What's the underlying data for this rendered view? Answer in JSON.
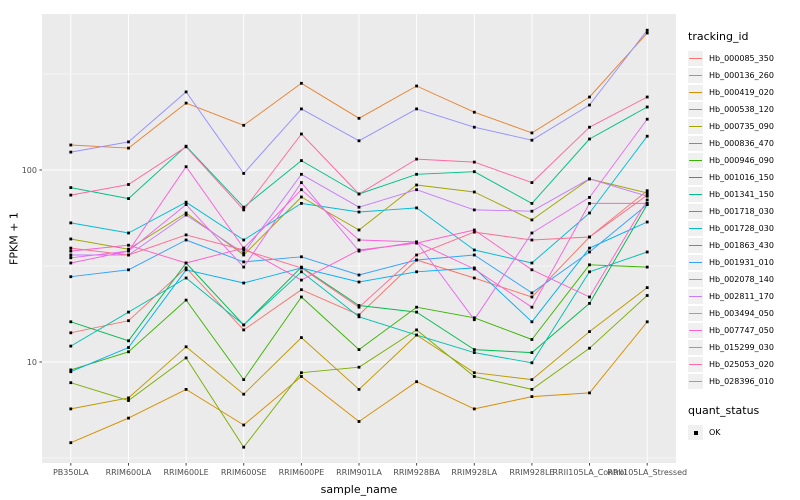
{
  "figure": {
    "y_axis": {
      "title": "FPKM + 1",
      "ticks": [
        {
          "label": "100",
          "value": 100
        },
        {
          "label": "10",
          "value": 10
        }
      ]
    },
    "x_axis": {
      "title": "sample_name"
    },
    "legend_tracking": {
      "title": "tracking_id"
    },
    "legend_quant": {
      "title": "quant_status",
      "items": [
        {
          "label": "OK"
        }
      ]
    },
    "panel_background": "#EBEBEB",
    "grid_color": "#FFFFFF",
    "tick_label_color": "#4D4D4D",
    "marker_color": "#000000"
  },
  "chart_data": {
    "type": "line",
    "title": "",
    "xlabel": "sample_name",
    "ylabel": "FPKM + 1",
    "x_scale": "categorical",
    "y_scale": "log10",
    "ylim": [
      2.7,
      650
    ],
    "y_major_ticks": [
      10,
      100
    ],
    "y_minor_ticks": [
      3.162,
      31.62,
      316.2
    ],
    "grid": "on",
    "legend_position": "right",
    "point_marker": {
      "shape": "square",
      "color": "#000000",
      "legend_label": "OK"
    },
    "categories": [
      "PB350LA",
      "RRIM600LA",
      "RRIM600LE",
      "RRIM600SE",
      "RRIM600PE",
      "RRIM901LA",
      "RRIM928BA",
      "RRIM928LA",
      "RRIM928LE",
      "RRII105LA_Control",
      "RRII105LA_Stressed"
    ],
    "series": [
      {
        "name": "Hb_000085_350",
        "color": "#F8766D",
        "values": [
          14.2,
          16.4,
          30.9,
          14.7,
          23.8,
          17.6,
          34,
          27.4,
          21.8,
          44.8,
          78
        ]
      },
      {
        "name": "Hb_000136_260",
        "color": "#EA8331",
        "values": [
          135,
          130,
          223,
          171,
          283,
          186,
          274,
          200,
          156,
          240,
          517
        ]
      },
      {
        "name": "Hb_000419_020",
        "color": "#D89000",
        "values": [
          3.8,
          5.1,
          7.2,
          4.7,
          8.4,
          4.9,
          7.9,
          5.7,
          6.6,
          6.9,
          16.2
        ]
      },
      {
        "name": "Hb_000538_120",
        "color": "#C09B00",
        "values": [
          5.7,
          6.5,
          12,
          6.8,
          13.4,
          7.2,
          13.8,
          8.8,
          8.1,
          14.4,
          24.4
        ]
      },
      {
        "name": "Hb_000735_090",
        "color": "#A3A500",
        "values": [
          43.7,
          38.7,
          59.7,
          36.1,
          72.3,
          48.7,
          83.5,
          76.8,
          55,
          89.8,
          76
        ]
      },
      {
        "name": "Hb_000836_470",
        "color": "#7CAE00",
        "values": [
          7.8,
          6.3,
          10.5,
          3.6,
          8.8,
          9.4,
          14.7,
          8.4,
          7.2,
          11.8,
          22.2
        ]
      },
      {
        "name": "Hb_000946_090",
        "color": "#39B600",
        "values": [
          9.1,
          11.3,
          21,
          8.1,
          21.8,
          11.6,
          19.3,
          17,
          13.1,
          32.1,
          31.2
        ]
      },
      {
        "name": "Hb_001016_150",
        "color": "#00BB4E",
        "values": [
          16.2,
          12.9,
          32.8,
          15.6,
          31.2,
          19.7,
          18.2,
          11.6,
          11.2,
          20.2,
          66
        ]
      },
      {
        "name": "Hb_001341_150",
        "color": "#00C087",
        "values": [
          81,
          71,
          133,
          64,
          112,
          75,
          95,
          98,
          67,
          145,
          213
        ]
      },
      {
        "name": "Hb_001718_030",
        "color": "#00C0AF",
        "values": [
          12.1,
          18.2,
          27.4,
          15.6,
          29.5,
          17.2,
          13.8,
          11.2,
          9.9,
          29.5,
          37.4
        ]
      },
      {
        "name": "Hb_001728_030",
        "color": "#00BCD8",
        "values": [
          53,
          47,
          68,
          43.2,
          67,
          60.4,
          63.5,
          38.3,
          32.8,
          59.7,
          150
        ]
      },
      {
        "name": "Hb_001863_430",
        "color": "#00B0F6",
        "values": [
          8.9,
          11.9,
          30.2,
          25.8,
          30.9,
          26.1,
          29.5,
          30.9,
          16.2,
          39.2,
          53.6
        ]
      },
      {
        "name": "Hb_001931_010",
        "color": "#35A2FF",
        "values": [
          27.8,
          30.2,
          43.2,
          33.2,
          35.3,
          28.4,
          34,
          36.1,
          22.9,
          37.4,
          66
        ]
      },
      {
        "name": "Hb_002078_140",
        "color": "#9590FF",
        "values": [
          124,
          140,
          255,
          96,
          208,
          142,
          208,
          167,
          143,
          218,
          535
        ]
      },
      {
        "name": "Hb_002811_170",
        "color": "#C77CFF",
        "values": [
          36.1,
          36.1,
          58.3,
          36.9,
          95,
          64,
          79,
          62,
          61,
          90,
          73
        ]
      },
      {
        "name": "Hb_003494_050",
        "color": "#E76BF3",
        "values": [
          34.9,
          37.8,
          66,
          31.2,
          86,
          37.8,
          42.2,
          16.6,
          47,
          72,
          184
        ]
      },
      {
        "name": "Hb_007747_050",
        "color": "#FA62DB",
        "values": [
          32.8,
          37.8,
          104,
          39.2,
          79,
          43.2,
          42.2,
          30.5,
          19.3,
          67,
          67
        ]
      },
      {
        "name": "Hb_015299_030",
        "color": "#FF61C9",
        "values": [
          37.8,
          40.6,
          32.8,
          39.2,
          26.7,
          38.3,
          41.6,
          48.7,
          30.2,
          21.8,
          69.8
        ]
      },
      {
        "name": "Hb_025053_020",
        "color": "#FF68A1",
        "values": [
          74,
          84,
          132,
          62,
          154,
          75,
          114,
          110,
          86,
          167,
          240
        ]
      },
      {
        "name": "Hb_028396_010",
        "color": "#FF6C90",
        "values": [
          39.2,
          36.1,
          45.9,
          38.3,
          30.9,
          19.3,
          36.1,
          47.5,
          43.2,
          44.8,
          74
        ]
      }
    ]
  }
}
